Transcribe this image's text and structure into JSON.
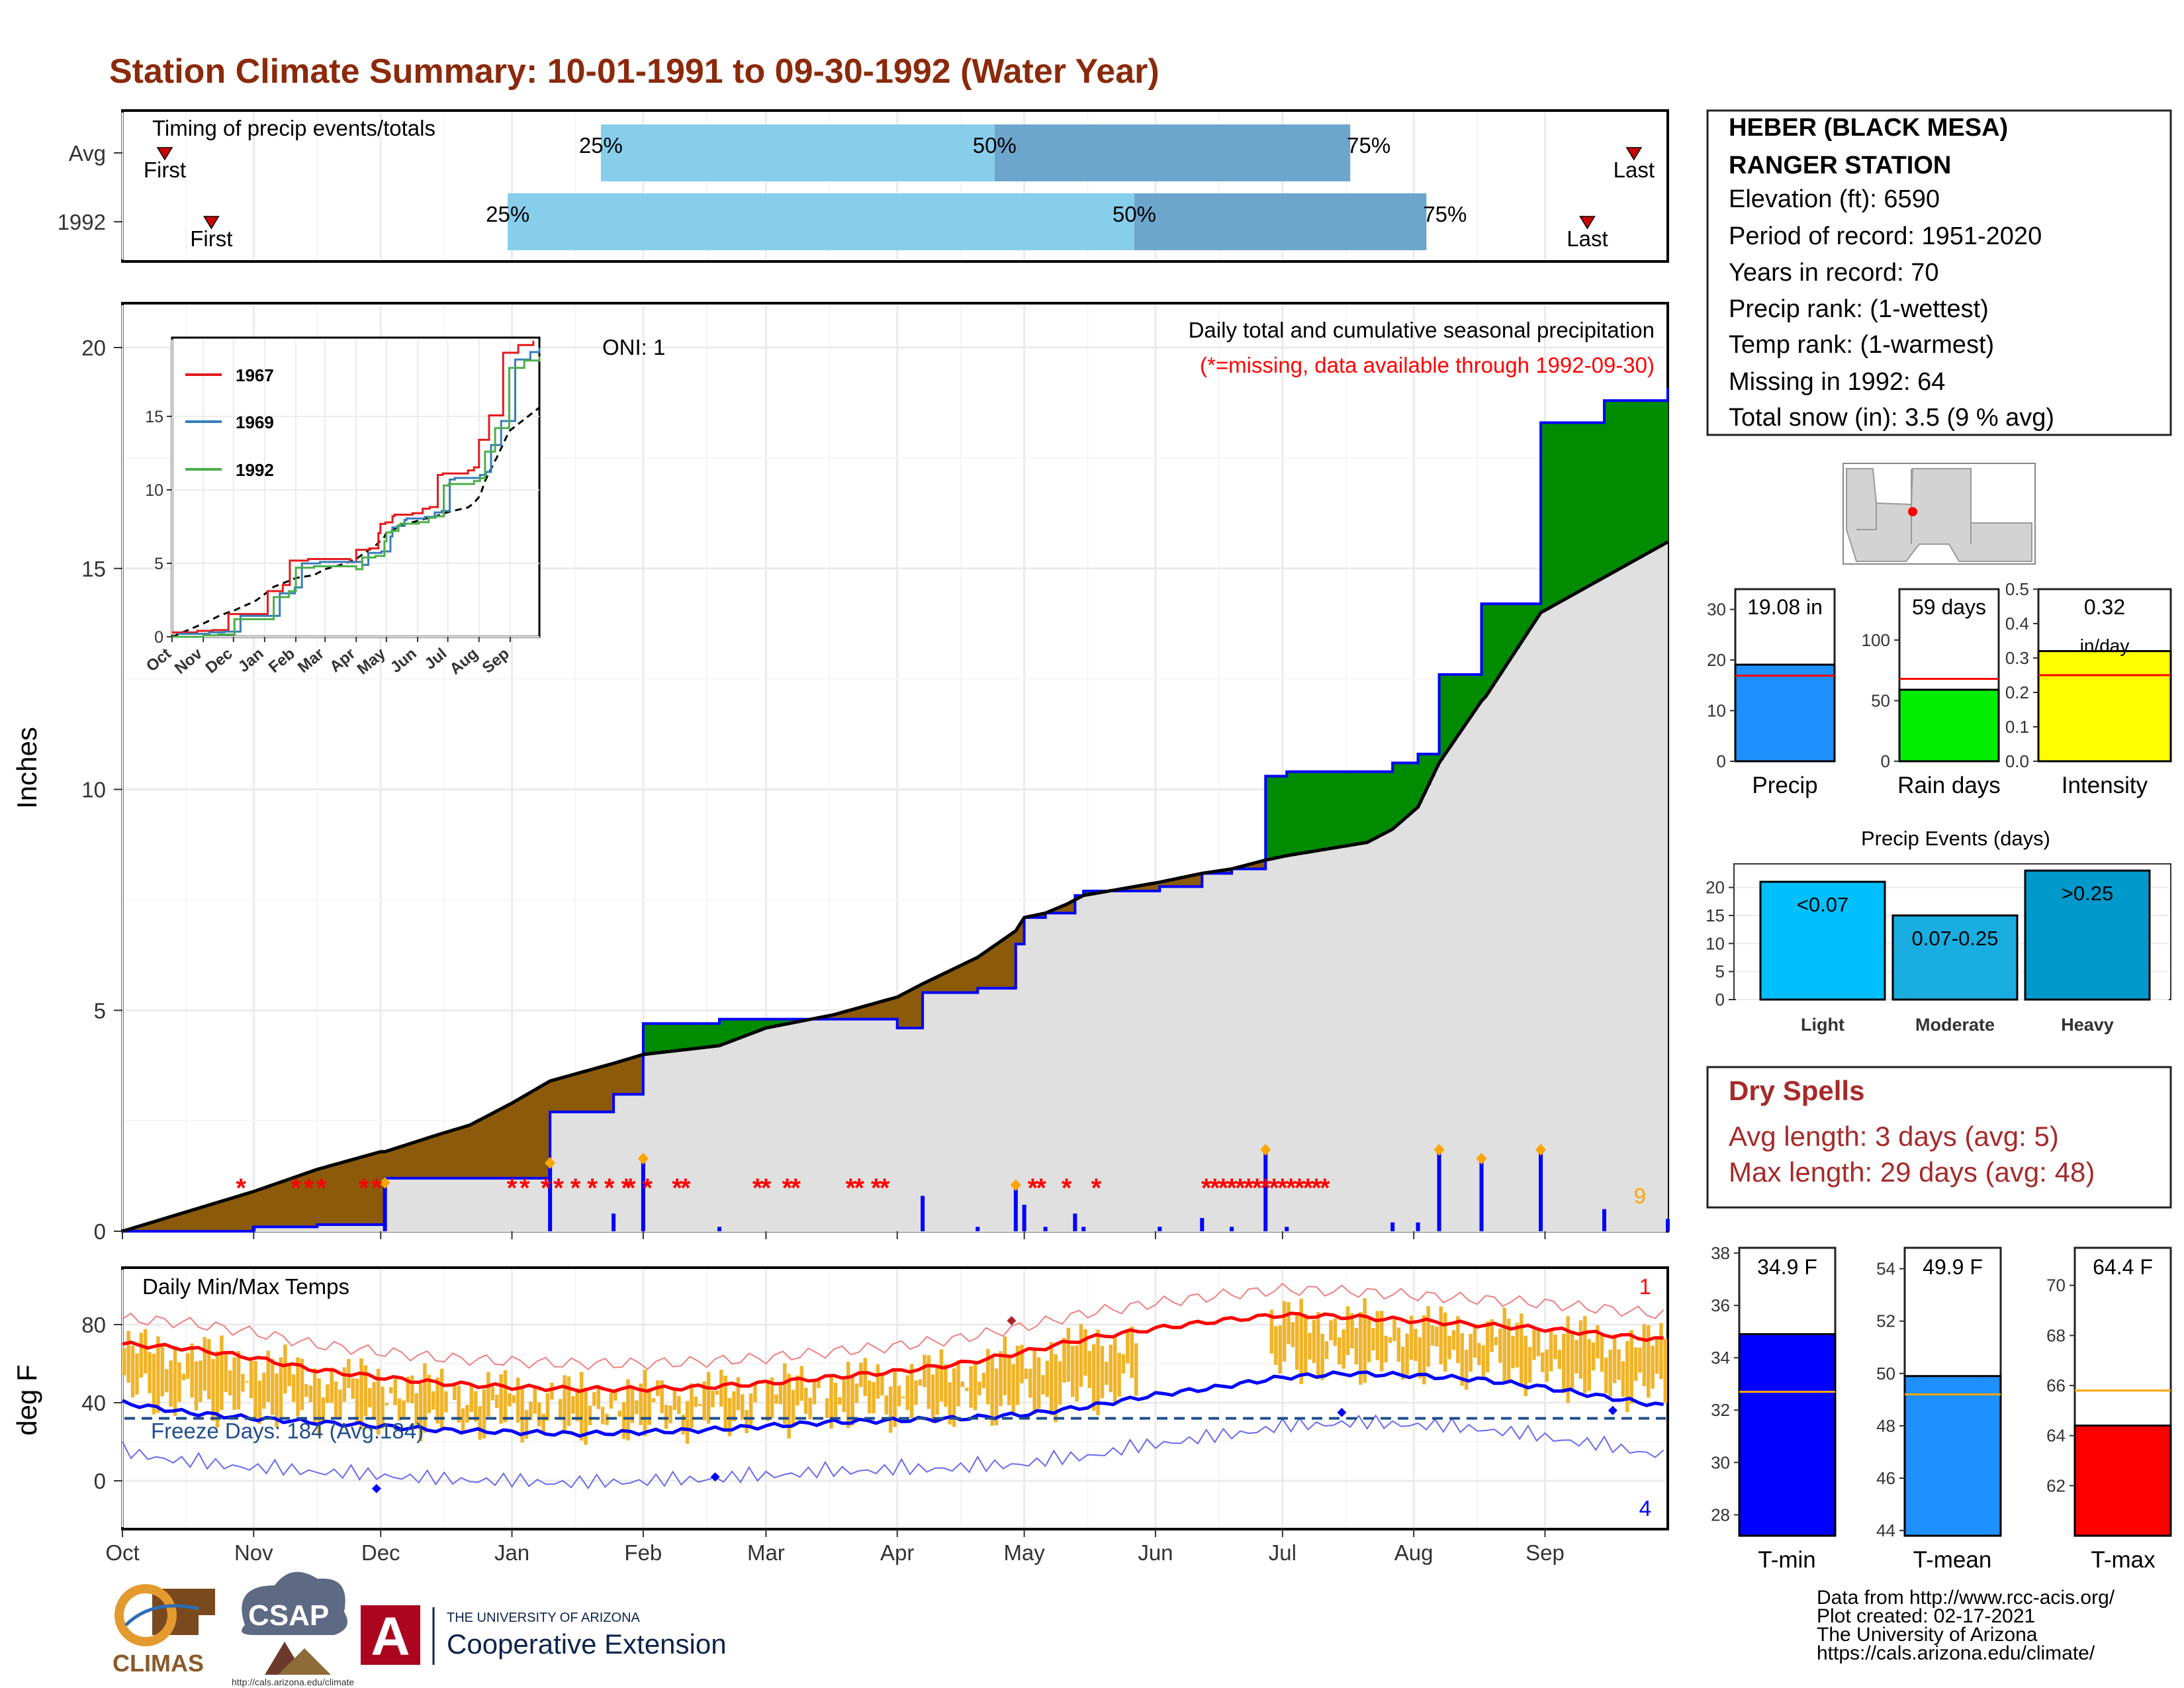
{
  "header": {
    "title": "Station Climate Summary: 10-01-1991 to 09-30-1992 (Water Year)"
  },
  "timing_panel": {
    "label": "Timing of precip events/totals",
    "rows": [
      {
        "row_label": "Avg",
        "first_label": "First",
        "first_day": 10,
        "q25_label": "25%",
        "q25_day": 113,
        "q50_label": "50%",
        "q50_day": 206,
        "q75_label": "75%",
        "q75_day": 290,
        "last_label": "Last",
        "last_day": 357
      },
      {
        "row_label": "1992",
        "first_label": "First",
        "first_day": 21,
        "q25_label": "25%",
        "q25_day": 91,
        "q50_label": "50%",
        "q50_day": 239,
        "q75_label": "75%",
        "q75_day": 308,
        "last_label": "Last",
        "last_day": 346
      }
    ],
    "colors": {
      "lower": "#87CEEB",
      "upper": "#6CA6CD",
      "marker": "#CC0000"
    }
  },
  "precip_panel": {
    "title": "Daily total and cumulative seasonal precipitation",
    "subtitle": "(*=missing, data available through 1992-09-30)",
    "oni": "ONI: 1",
    "ylabel": "Inches",
    "y_ticks": [
      "0",
      "5",
      "10",
      "15",
      "20"
    ],
    "count_label": "9",
    "missing_marker": "*"
  },
  "inset": {
    "y_ticks": [
      "0",
      "5",
      "10",
      "15"
    ],
    "x_ticks": [
      "Oct",
      "Nov",
      "Dec",
      "Jan",
      "Feb",
      "Mar",
      "Apr",
      "May",
      "Jun",
      "Jul",
      "Aug",
      "Sep"
    ],
    "legend": [
      {
        "name": "1967",
        "color": "#E41A1C"
      },
      {
        "name": "1969",
        "color": "#377EB8"
      },
      {
        "name": "1992",
        "color": "#4DAF4A"
      }
    ]
  },
  "temp_panel": {
    "title": "Daily Min/Max Temps",
    "ylabel": "deg F",
    "y_ticks": [
      "0",
      "40",
      "80"
    ],
    "freeze_label": "Freeze Days: 184 (Avg:184)",
    "max_record_count": "1",
    "min_record_count": "4"
  },
  "x_axis": {
    "months": [
      "Oct",
      "Nov",
      "Dec",
      "Jan",
      "Feb",
      "Mar",
      "Apr",
      "May",
      "Jun",
      "Jul",
      "Aug",
      "Sep"
    ]
  },
  "station": {
    "name_line1": "HEBER (BLACK MESA)",
    "name_line2": "RANGER STATION",
    "lines": [
      "Elevation (ft): 6590",
      "Period of record: 1951-2020",
      "Years in record: 70",
      "Precip rank:  (1-wettest)",
      "Temp rank:  (1-warmest)",
      "Missing in 1992: 64",
      "Total snow (in): 3.5 (9 % avg)"
    ]
  },
  "summary_bars": [
    {
      "label": "Precip",
      "value_text": "19.08 in",
      "value": 19.08,
      "avg": 16.9,
      "ymax": 34,
      "ticks": [
        "0",
        "10",
        "20",
        "30"
      ],
      "color": "#1E90FF"
    },
    {
      "label": "Rain days",
      "value_text": "59 days",
      "value": 59,
      "avg": 68,
      "ymax": 142,
      "ticks": [
        "0",
        "50",
        "100"
      ],
      "color": "#00EE00"
    },
    {
      "label": "Intensity",
      "value_text": "0.32",
      "unit_text": "in/day",
      "value": 0.32,
      "avg": 0.25,
      "ymax": 0.5,
      "ticks": [
        "0.0",
        "0.1",
        "0.2",
        "0.3",
        "0.4",
        "0.5"
      ],
      "color": "#FFFF00"
    }
  ],
  "precip_events": {
    "title": "Precip Events (days)",
    "categories": [
      "Light",
      "Moderate",
      "Heavy"
    ],
    "bar_labels": [
      "<0.07",
      "0.07-0.25",
      ">0.25"
    ],
    "values": [
      21,
      15,
      23
    ],
    "ticks": [
      "0",
      "5",
      "10",
      "15",
      "20"
    ],
    "colors": [
      "#00BFFF",
      "#1AADE0",
      "#0099CC"
    ]
  },
  "dry_spells": {
    "title": "Dry Spells",
    "avg_line": "Avg length: 3 days (avg: 5)",
    "max_line": "Max length: 29 days (avg: 48)"
  },
  "temp_bars": [
    {
      "label": "T-min",
      "value_text": "34.9 F",
      "value": 34.9,
      "avg": 32.7,
      "ymin": 27.2,
      "ymax": 38.2,
      "ticks": [
        "28",
        "30",
        "32",
        "34",
        "36",
        "38"
      ],
      "color": "#0000FF"
    },
    {
      "label": "T-mean",
      "value_text": "49.9 F",
      "value": 49.9,
      "avg": 49.2,
      "ymin": 43.8,
      "ymax": 54.8,
      "ticks": [
        "44",
        "46",
        "48",
        "50",
        "52",
        "54"
      ],
      "color": "#1E90FF"
    },
    {
      "label": "T-max",
      "value_text": "64.4 F",
      "value": 64.4,
      "avg": 65.8,
      "ymin": 60.0,
      "ymax": 71.5,
      "ticks": [
        "62",
        "64",
        "66",
        "68",
        "70"
      ],
      "color": "#FF0000"
    }
  ],
  "credits": {
    "line1": "Data from http://www.rcc-acis.org/",
    "line2": "Plot created: 02-17-2021",
    "line3": "The University of Arizona",
    "line4": "https://cals.arizona.edu/climate/"
  },
  "logos": {
    "climas": "CLIMAS",
    "csap": "CSAP",
    "csap_url": "http://cals.arizona.edu/climate",
    "ua_letter": "A",
    "ua_line1": "THE UNIVERSITY OF ARIZONA",
    "ua_line2": "Cooperative Extension"
  },
  "chart_data": [
    {
      "type": "area",
      "title": "Daily total and cumulative seasonal precipitation",
      "ylabel": "Inches",
      "ylim": [
        0,
        21
      ],
      "x": [
        0,
        31,
        46,
        61,
        62,
        75,
        82,
        92,
        101,
        116,
        123,
        141,
        152,
        168,
        183,
        189,
        202,
        211,
        213,
        218,
        223,
        225,
        227,
        245,
        255,
        262,
        270,
        275,
        294,
        300,
        306,
        311,
        321,
        322,
        335,
        350,
        365
      ],
      "x_unit": "day of water year (0 = Oct 1)",
      "series": [
        {
          "name": "1992",
          "values": [
            0,
            0.1,
            0.15,
            0.15,
            1.2,
            1.2,
            1.2,
            1.2,
            2.7,
            3.1,
            4.7,
            4.8,
            4.8,
            4.8,
            4.6,
            5.4,
            5.5,
            6.5,
            7.1,
            7.2,
            7.2,
            7.6,
            7.7,
            7.8,
            8.1,
            8.2,
            10.3,
            10.4,
            10.4,
            10.6,
            10.8,
            12.6,
            14.2,
            14.2,
            18.3,
            18.8,
            19.08
          ]
        },
        {
          "values": [
            0,
            0.9,
            1.4,
            1.8,
            1.8,
            2.2,
            2.4,
            2.9,
            3.4,
            3.8,
            4.0,
            4.2,
            4.6,
            4.9,
            5.3,
            5.6,
            6.2,
            6.8,
            7.1,
            7.2,
            7.4,
            7.5,
            7.6,
            7.9,
            8.1,
            8.2,
            8.4,
            8.5,
            8.8,
            9.1,
            9.6,
            10.6,
            12.0,
            12.1,
            14.0,
            14.8,
            15.6
          ]
        }
      ]
    },
    {
      "type": "line",
      "ylabel": "deg F",
      "x_unit": "day of water year (0 = Oct 1)",
      "x": [
        0,
        15,
        31,
        45,
        61,
        75,
        92,
        107,
        123,
        137,
        152,
        167,
        183,
        198,
        213,
        228,
        244,
        259,
        274,
        290,
        305,
        320,
        335,
        350,
        365
      ],
      "series": [
        {
          "values": [
            70,
            68,
            63,
            57,
            53,
            50,
            48,
            47,
            47,
            48,
            50,
            53,
            56,
            60,
            66,
            73,
            78,
            82,
            85,
            84,
            82,
            80,
            78,
            75,
            72
          ]
        },
        {
          "values": [
            40,
            35,
            32,
            30,
            28,
            26,
            25,
            24,
            25,
            26,
            28,
            30,
            31,
            32,
            34,
            38,
            44,
            48,
            53,
            55,
            54,
            52,
            48,
            43,
            38
          ]
        }
      ],
      "hlines": [
        32
      ]
    }
  ]
}
